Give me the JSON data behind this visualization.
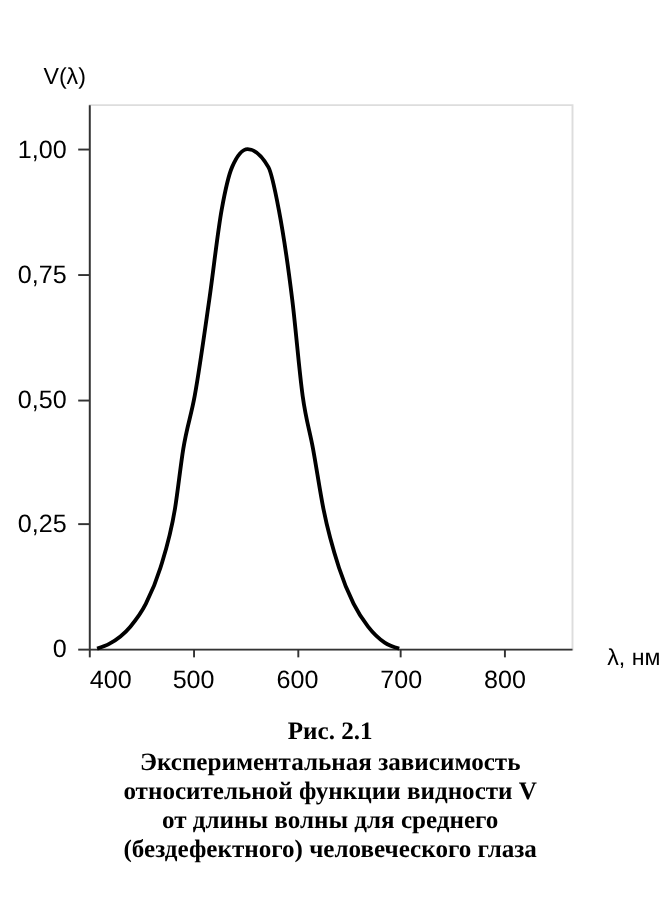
{
  "chart_data": {
    "type": "line",
    "title": "Рис. 2.1",
    "subtitle": "Экспериментальная зависимость\nотносительной функции видности V\nот длины волны для среднего\n(бездефектного) человеческого глаза",
    "xlabel": "λ, нм",
    "ylabel": "V(λ)",
    "x": [
      408,
      420,
      440,
      455,
      469,
      483,
      491,
      502,
      516,
      528,
      538,
      553,
      573,
      583,
      596,
      606,
      616,
      626,
      641,
      655,
      669,
      685,
      699
    ],
    "series": [
      {
        "color": "#000000",
        "values": [
          0,
          0.01,
          0.044,
          0.09,
          0.162,
          0.28,
          0.4,
          0.506,
          0.698,
          0.879,
          0.964,
          1.0,
          0.964,
          0.879,
          0.698,
          0.506,
          0.4,
          0.28,
          0.162,
          0.09,
          0.044,
          0.012,
          0
        ]
      }
    ],
    "xlim": [
      400,
      865
    ],
    "xticks": [
      400,
      500,
      600,
      700,
      800
    ],
    "ylim": [
      0,
      1.09
    ],
    "yticks": [
      0,
      {
        "value": 0.25,
        "label": "0,25"
      },
      {
        "value": 0.5,
        "label": "0,50"
      },
      {
        "value": 0.75,
        "label": "0,75"
      },
      {
        "value": 1.0,
        "label": "1,00"
      }
    ],
    "grid": false,
    "marker": "none",
    "line_style": "solid"
  }
}
